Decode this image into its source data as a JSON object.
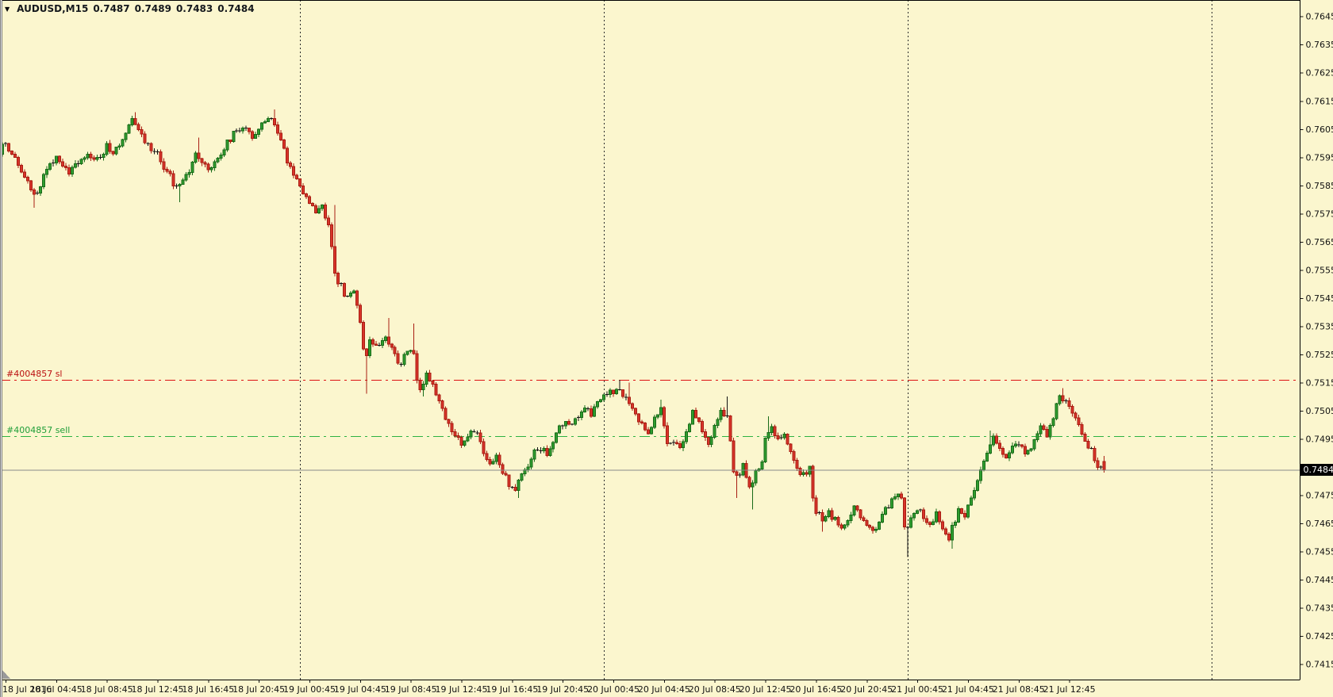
{
  "background": "#FBF6CE",
  "title": {
    "dropdown_icon": "▼",
    "symbol_period": "AUDUSD,M15",
    "open": "0.7487",
    "high": "0.7489",
    "low": "0.7483",
    "close": "0.7484"
  },
  "price_axis": {
    "tick_labels": [
      "0.7645",
      "0.7635",
      "0.7625",
      "0.7615",
      "0.7605",
      "0.7595",
      "0.7585",
      "0.7575",
      "0.7565",
      "0.7555",
      "0.7545",
      "0.7535",
      "0.7525",
      "0.7515",
      "0.7505",
      "0.7495",
      "0.7485",
      "0.7475",
      "0.7465",
      "0.7455",
      "0.7445",
      "0.7435",
      "0.7425",
      "0.7415"
    ],
    "tick_step": 0.001,
    "text_color": "#111111"
  },
  "time_axis": {
    "text_color": "#111111",
    "ticks": [
      {
        "i": 3,
        "label": "18 Jul 2016"
      },
      {
        "i": 19,
        "label": "18 Jul 04:45"
      },
      {
        "i": 35,
        "label": "18 Jul 08:45"
      },
      {
        "i": 51,
        "label": "18 Jul 12:45"
      },
      {
        "i": 67,
        "label": "18 Jul 16:45"
      },
      {
        "i": 83,
        "label": "18 Jul 20:45"
      },
      {
        "i": 99,
        "label": "19 Jul 00:45"
      },
      {
        "i": 115,
        "label": "19 Jul 04:45"
      },
      {
        "i": 131,
        "label": "19 Jul 08:45"
      },
      {
        "i": 147,
        "label": "19 Jul 12:45"
      },
      {
        "i": 163,
        "label": "19 Jul 16:45"
      },
      {
        "i": 179,
        "label": "19 Jul 20:45"
      },
      {
        "i": 195,
        "label": "20 Jul 00:45"
      },
      {
        "i": 211,
        "label": "20 Jul 04:45"
      },
      {
        "i": 227,
        "label": "20 Jul 08:45"
      },
      {
        "i": 243,
        "label": "20 Jul 12:45"
      },
      {
        "i": 259,
        "label": "20 Jul 16:45"
      },
      {
        "i": 275,
        "label": "20 Jul 20:45"
      },
      {
        "i": 291,
        "label": "21 Jul 00:45"
      },
      {
        "i": 307,
        "label": "21 Jul 04:45"
      },
      {
        "i": 323,
        "label": "21 Jul 08:45"
      },
      {
        "i": 339,
        "label": "21 Jul 12:45"
      }
    ]
  },
  "trade_lines": {
    "stop_loss": {
      "label": "#4004857 sl",
      "price": 0.7516,
      "line_color": "#dd1111",
      "label_color": "#bb1010"
    },
    "sell": {
      "label": "#4004857 sell",
      "price": 0.7496,
      "line_color": "#2cb342",
      "label_color": "#1f9e38"
    }
  },
  "current_price": {
    "display": "0.7484",
    "price": 0.7484,
    "line_color": "#8a8a8a",
    "badge_bg": "#000000",
    "badge_fg": "#ffffff"
  },
  "chart_data": {
    "type": "candlestick",
    "symbol": "AUDUSD",
    "timeframe": "M15",
    "title": "AUDUSD,M15  0.7487 0.7489 0.7483 0.7484",
    "current_bar": {
      "open": 0.7487,
      "high": 0.7489,
      "low": 0.7483,
      "close": 0.7484
    },
    "first_bar_index": 2,
    "last_bar_index": 350,
    "bars_per_day": 96,
    "day_separator_indices": [
      96,
      192,
      288,
      384
    ],
    "visible_price_range": [
      0.741,
      0.7651
    ],
    "up_color": "#2F9E2F",
    "up_border": "#186A18",
    "down_color": "#D8342A",
    "down_border": "#A81D12",
    "doji_color": "#111111",
    "anchors": [
      [
        2,
        0.7597
      ],
      [
        4,
        0.76
      ],
      [
        6,
        0.7597
      ],
      [
        8,
        0.7592
      ],
      [
        10,
        0.7589
      ],
      [
        12,
        0.7584
      ],
      [
        14,
        0.7582
      ],
      [
        16,
        0.7588
      ],
      [
        18,
        0.7592
      ],
      [
        20,
        0.7596
      ],
      [
        22,
        0.7593
      ],
      [
        24,
        0.759
      ],
      [
        26,
        0.7592
      ],
      [
        28,
        0.7595
      ],
      [
        30,
        0.7597
      ],
      [
        32,
        0.7593
      ],
      [
        34,
        0.7595
      ],
      [
        36,
        0.7599
      ],
      [
        38,
        0.7597
      ],
      [
        40,
        0.76
      ],
      [
        42,
        0.7604
      ],
      [
        44,
        0.7608
      ],
      [
        46,
        0.7604
      ],
      [
        48,
        0.7601
      ],
      [
        50,
        0.7598
      ],
      [
        52,
        0.7596
      ],
      [
        54,
        0.7592
      ],
      [
        56,
        0.7588
      ],
      [
        58,
        0.7584
      ],
      [
        60,
        0.7586
      ],
      [
        62,
        0.759
      ],
      [
        64,
        0.7597
      ],
      [
        66,
        0.7594
      ],
      [
        68,
        0.759
      ],
      [
        70,
        0.7593
      ],
      [
        72,
        0.7597
      ],
      [
        74,
        0.76
      ],
      [
        76,
        0.7603
      ],
      [
        78,
        0.7605
      ],
      [
        80,
        0.7606
      ],
      [
        82,
        0.7603
      ],
      [
        84,
        0.7605
      ],
      [
        86,
        0.7608
      ],
      [
        88,
        0.7609
      ],
      [
        90,
        0.7604
      ],
      [
        92,
        0.7597
      ],
      [
        94,
        0.7591
      ],
      [
        96,
        0.7588
      ],
      [
        98,
        0.7583
      ],
      [
        100,
        0.7579
      ],
      [
        102,
        0.7576
      ],
      [
        104,
        0.7578
      ],
      [
        106,
        0.7571
      ],
      [
        107,
        0.7562
      ],
      [
        108,
        0.7553
      ],
      [
        110,
        0.7549
      ],
      [
        112,
        0.7545
      ],
      [
        114,
        0.7547
      ],
      [
        116,
        0.7537
      ],
      [
        117,
        0.7526
      ],
      [
        118,
        0.7524
      ],
      [
        119,
        0.7529
      ],
      [
        121,
        0.7527
      ],
      [
        123,
        0.7531
      ],
      [
        125,
        0.7529
      ],
      [
        127,
        0.7524
      ],
      [
        129,
        0.7522
      ],
      [
        131,
        0.7527
      ],
      [
        133,
        0.7525
      ],
      [
        134,
        0.7516
      ],
      [
        135,
        0.7513
      ],
      [
        137,
        0.7518
      ],
      [
        139,
        0.7515
      ],
      [
        141,
        0.7508
      ],
      [
        143,
        0.7502
      ],
      [
        145,
        0.7498
      ],
      [
        147,
        0.7495
      ],
      [
        149,
        0.7493
      ],
      [
        151,
        0.7498
      ],
      [
        153,
        0.7496
      ],
      [
        155,
        0.7491
      ],
      [
        157,
        0.7487
      ],
      [
        159,
        0.7489
      ],
      [
        161,
        0.7484
      ],
      [
        163,
        0.7479
      ],
      [
        165,
        0.7477
      ],
      [
        167,
        0.7482
      ],
      [
        169,
        0.7486
      ],
      [
        171,
        0.749
      ],
      [
        173,
        0.7492
      ],
      [
        175,
        0.749
      ],
      [
        177,
        0.7495
      ],
      [
        179,
        0.7499
      ],
      [
        181,
        0.7501
      ],
      [
        183,
        0.7499
      ],
      [
        185,
        0.7503
      ],
      [
        187,
        0.7505
      ],
      [
        189,
        0.7504
      ],
      [
        191,
        0.7507
      ],
      [
        193,
        0.751
      ],
      [
        196,
        0.7512
      ],
      [
        199,
        0.7511
      ],
      [
        201,
        0.7508
      ],
      [
        203,
        0.7504
      ],
      [
        205,
        0.75
      ],
      [
        207,
        0.7496
      ],
      [
        209,
        0.7503
      ],
      [
        211,
        0.7505
      ],
      [
        213,
        0.7494
      ],
      [
        215,
        0.7495
      ],
      [
        217,
        0.7491
      ],
      [
        219,
        0.7497
      ],
      [
        221,
        0.7504
      ],
      [
        223,
        0.7501
      ],
      [
        225,
        0.7496
      ],
      [
        226,
        0.7492
      ],
      [
        228,
        0.7499
      ],
      [
        230,
        0.7506
      ],
      [
        232,
        0.7503
      ],
      [
        233,
        0.7494
      ],
      [
        234,
        0.7483
      ],
      [
        236,
        0.7481
      ],
      [
        237,
        0.7486
      ],
      [
        239,
        0.7478
      ],
      [
        241,
        0.7483
      ],
      [
        243,
        0.7487
      ],
      [
        244,
        0.7495
      ],
      [
        246,
        0.7499
      ],
      [
        248,
        0.7494
      ],
      [
        250,
        0.7496
      ],
      [
        252,
        0.749
      ],
      [
        254,
        0.7485
      ],
      [
        256,
        0.7482
      ],
      [
        258,
        0.7484
      ],
      [
        259,
        0.7475
      ],
      [
        260,
        0.7469
      ],
      [
        262,
        0.7467
      ],
      [
        264,
        0.7469
      ],
      [
        266,
        0.7466
      ],
      [
        268,
        0.7463
      ],
      [
        270,
        0.7466
      ],
      [
        272,
        0.747
      ],
      [
        274,
        0.7468
      ],
      [
        276,
        0.7465
      ],
      [
        278,
        0.7462
      ],
      [
        280,
        0.7466
      ],
      [
        282,
        0.747
      ],
      [
        284,
        0.7473
      ],
      [
        286,
        0.7475
      ],
      [
        287,
        0.7474
      ],
      [
        288,
        0.7464
      ],
      [
        289,
        0.7463
      ],
      [
        290,
        0.7467
      ],
      [
        292,
        0.747
      ],
      [
        294,
        0.7468
      ],
      [
        296,
        0.7464
      ],
      [
        298,
        0.7468
      ],
      [
        300,
        0.7463
      ],
      [
        302,
        0.746
      ],
      [
        303,
        0.7464
      ],
      [
        305,
        0.7469
      ],
      [
        307,
        0.7468
      ],
      [
        309,
        0.7473
      ],
      [
        311,
        0.748
      ],
      [
        313,
        0.7488
      ],
      [
        315,
        0.7494
      ],
      [
        316,
        0.7496
      ],
      [
        318,
        0.7491
      ],
      [
        320,
        0.7489
      ],
      [
        322,
        0.7492
      ],
      [
        324,
        0.7494
      ],
      [
        326,
        0.749
      ],
      [
        328,
        0.7492
      ],
      [
        330,
        0.7497
      ],
      [
        331,
        0.7499
      ],
      [
        333,
        0.7496
      ],
      [
        335,
        0.7501
      ],
      [
        336,
        0.7507
      ],
      [
        337,
        0.7511
      ],
      [
        338,
        0.7509
      ],
      [
        340,
        0.7506
      ],
      [
        342,
        0.7502
      ],
      [
        344,
        0.7497
      ],
      [
        346,
        0.7493
      ],
      [
        348,
        0.7488
      ],
      [
        349,
        0.7486
      ],
      [
        350,
        0.7484
      ]
    ],
    "wick_extremes": [
      [
        12,
        "L",
        0.7577
      ],
      [
        44,
        "H",
        0.7611
      ],
      [
        58,
        "L",
        0.7579
      ],
      [
        64,
        "H",
        0.7602
      ],
      [
        88,
        "H",
        0.7612
      ],
      [
        107,
        "H",
        0.7578
      ],
      [
        117,
        "L",
        0.7511
      ],
      [
        124,
        "H",
        0.7538
      ],
      [
        132,
        "H",
        0.7536
      ],
      [
        135,
        "L",
        0.751
      ],
      [
        162,
        "L",
        0.7479
      ],
      [
        165,
        "L",
        0.7474
      ],
      [
        197,
        "H",
        0.7516
      ],
      [
        200,
        "H",
        0.7515
      ],
      [
        210,
        "H",
        0.7509
      ],
      [
        231,
        "H",
        0.751
      ],
      [
        234,
        "L",
        0.7474
      ],
      [
        239,
        "L",
        0.747
      ],
      [
        244,
        "H",
        0.7503
      ],
      [
        261,
        "L",
        0.7462
      ],
      [
        288,
        "L",
        0.7453
      ],
      [
        302,
        "L",
        0.7456
      ],
      [
        314,
        "H",
        0.7498
      ],
      [
        337,
        "H",
        0.7513
      ]
    ]
  }
}
